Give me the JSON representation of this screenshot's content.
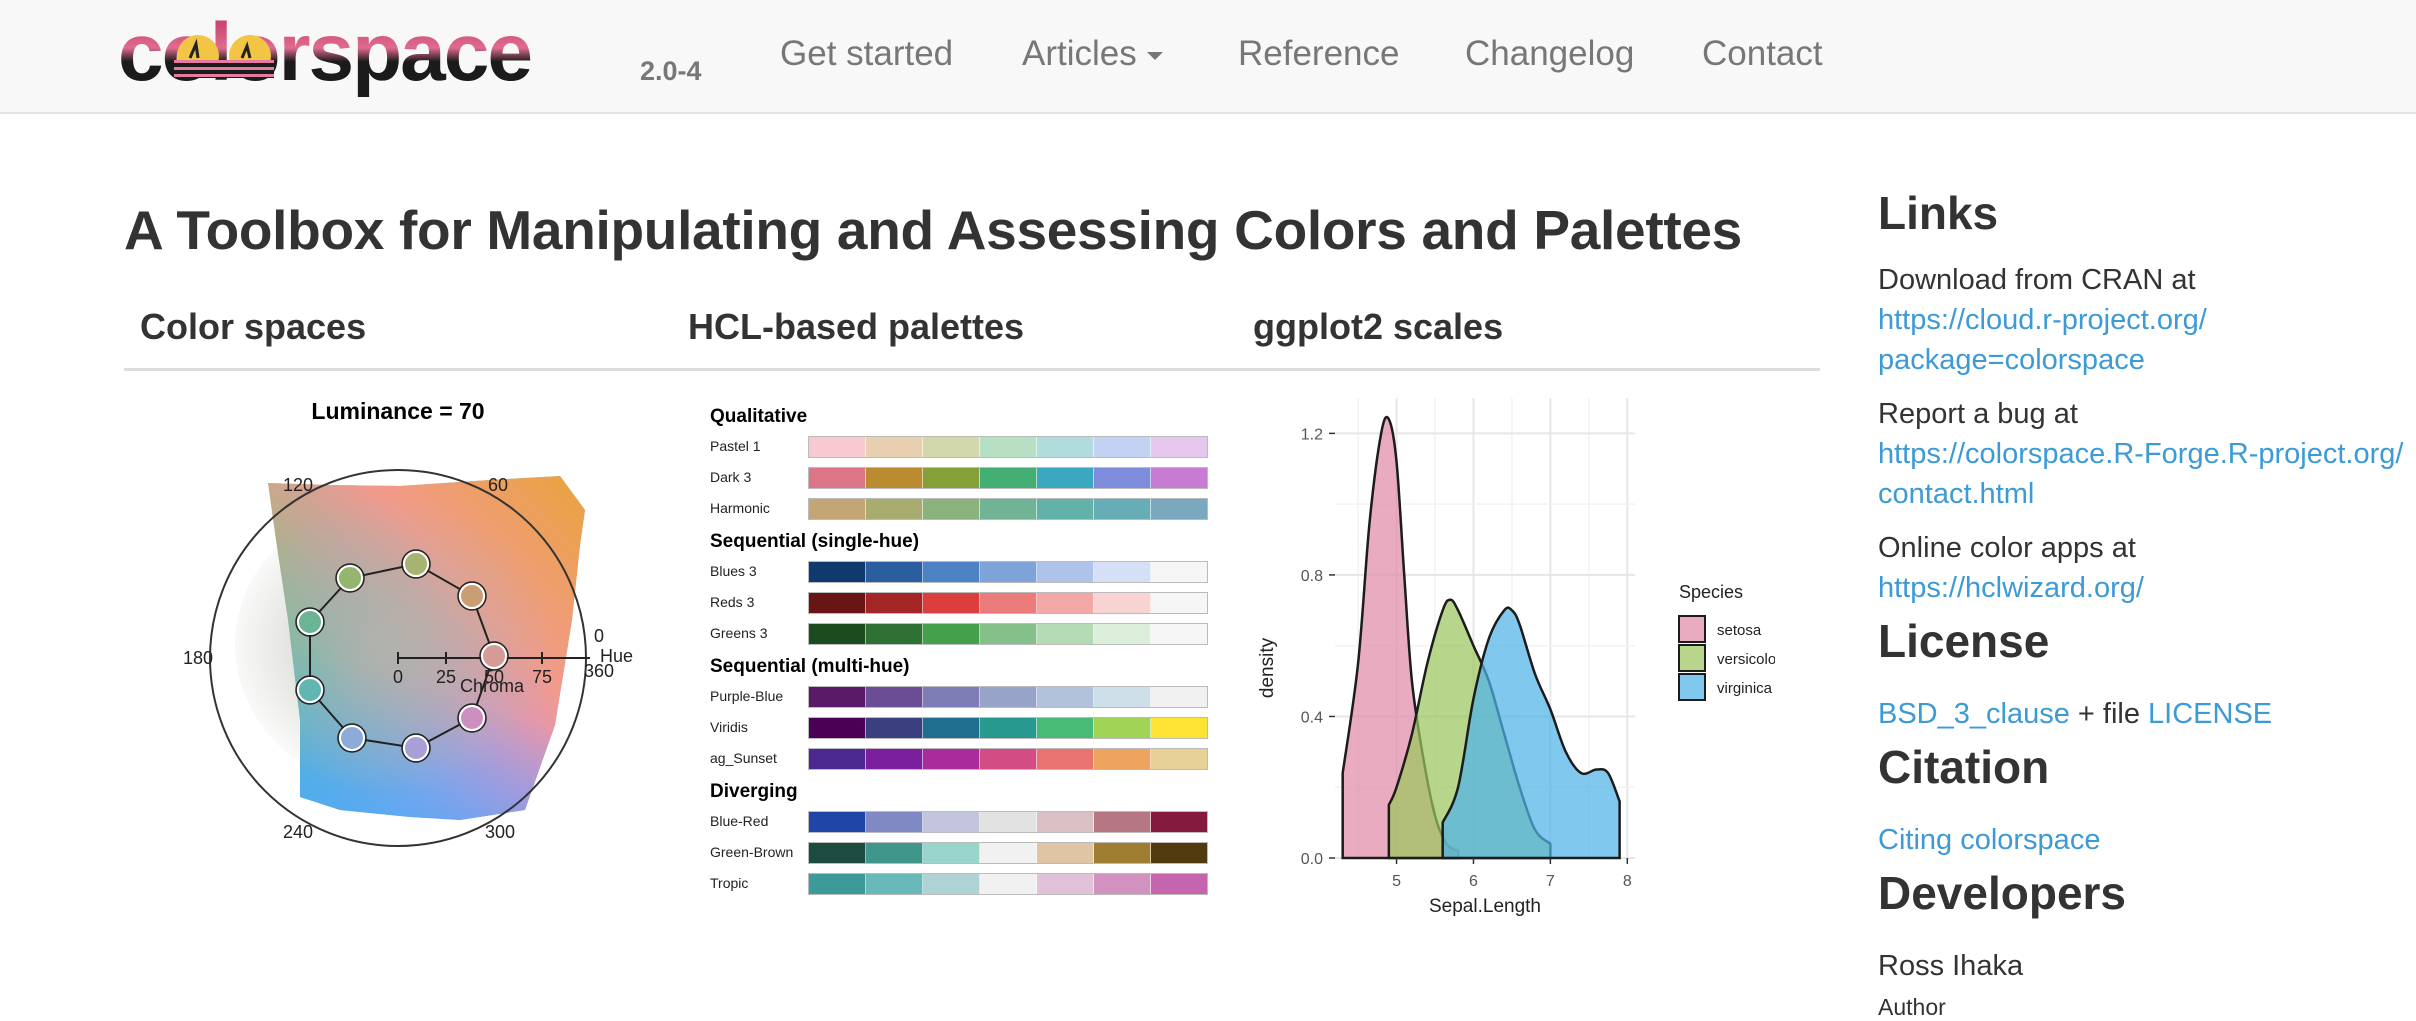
{
  "navbar": {
    "logo_text": "colorspace",
    "version": "2.0-4",
    "items": [
      {
        "label": "Get started"
      },
      {
        "label": "Articles",
        "has_caret": true
      },
      {
        "label": "Reference"
      },
      {
        "label": "Changelog"
      },
      {
        "label": "Contact"
      }
    ]
  },
  "main": {
    "title": "A Toolbox for Manipulating and Assessing Colors and Palettes",
    "tabs": [
      {
        "label": "Color spaces"
      },
      {
        "label": "HCL-based palettes"
      },
      {
        "label": "ggplot2 scales"
      }
    ]
  },
  "color_space_plot": {
    "title": "Luminance = 70",
    "hue_ticks": [
      "0",
      "60",
      "120",
      "180",
      "240",
      "300",
      "360"
    ],
    "hue_label": "Hue",
    "chroma_ticks": [
      "0",
      "25",
      "50",
      "75"
    ],
    "chroma_label": "Chroma"
  },
  "palettes": {
    "groups": [
      {
        "title": "Qualitative",
        "rows": [
          {
            "name": "Pastel 1",
            "colors": [
              "#f6c9d3",
              "#e8cfb0",
              "#d2d7ac",
              "#b6dfc3",
              "#b0dcde",
              "#c3d2f3",
              "#e6c8ee"
            ]
          },
          {
            "name": "Dark 3",
            "colors": [
              "#dc7587",
              "#bb8b2f",
              "#85a036",
              "#43ae74",
              "#3aa8c1",
              "#7d8ddc",
              "#c87bd2"
            ]
          },
          {
            "name": "Harmonic",
            "colors": [
              "#c4a676",
              "#a8ad6f",
              "#8bb27c",
              "#70b495",
              "#62b2a9",
              "#67adb5",
              "#7aa9bf"
            ]
          }
        ]
      },
      {
        "title": "Sequential (single-hue)",
        "rows": [
          {
            "name": "Blues 3",
            "colors": [
              "#0f3a6e",
              "#2a5e9e",
              "#4d82c4",
              "#7ea3d9",
              "#aec2ea",
              "#d5e0f6",
              "#f6f6f6"
            ]
          },
          {
            "name": "Reds 3",
            "colors": [
              "#6a1515",
              "#a32525",
              "#dc3d3d",
              "#ec7b7b",
              "#f3a8a8",
              "#f8d3d3",
              "#f6f6f6"
            ]
          },
          {
            "name": "Greens 3",
            "colors": [
              "#1b4b1e",
              "#2f7134",
              "#45a04c",
              "#85c08a",
              "#b5dbb5",
              "#dcefdb",
              "#f6f6f6"
            ]
          }
        ]
      },
      {
        "title": "Sequential (multi-hue)",
        "rows": [
          {
            "name": "Purple-Blue",
            "colors": [
              "#5a1a68",
              "#6a4d95",
              "#7f7db6",
              "#98a3ca",
              "#b1c2da",
              "#cfdfea",
              "#f1f1f1"
            ]
          },
          {
            "name": "Viridis",
            "colors": [
              "#4b0055",
              "#3a3f80",
              "#1f6d8f",
              "#27998e",
              "#48bc76",
              "#a1d356",
              "#fde333"
            ]
          },
          {
            "name": "ag_Sunset",
            "colors": [
              "#4b2991",
              "#7c1f9f",
              "#a92b9c",
              "#d34d85",
              "#e97370",
              "#eea35f",
              "#e8d197"
            ]
          }
        ]
      },
      {
        "title": "Diverging",
        "rows": [
          {
            "name": "Blue-Red",
            "colors": [
              "#1f45a8",
              "#8189c4",
              "#c2c5db",
              "#e2e2e2",
              "#d9c0c4",
              "#b77684",
              "#841a3d"
            ]
          },
          {
            "name": "Green-Brown",
            "colors": [
              "#1e4b40",
              "#3f978c",
              "#99d5cd",
              "#f1f1f1",
              "#dfc5a4",
              "#a07e31",
              "#523a0f"
            ]
          },
          {
            "name": "Tropic",
            "colors": [
              "#3c9b99",
              "#68b7b9",
              "#afd2d4",
              "#f1f1f1",
              "#e2c2d9",
              "#d192c0",
              "#c565ad"
            ]
          }
        ]
      }
    ]
  },
  "ggplot_chart": {
    "chart_data": {
      "type": "area",
      "xlabel": "Sepal.Length",
      "ylabel": "density",
      "xlim": [
        4.2,
        8.1
      ],
      "ylim": [
        0,
        1.3
      ],
      "x_ticks": [
        5,
        6,
        7,
        8
      ],
      "y_ticks": [
        0.0,
        0.4,
        0.8,
        1.2
      ],
      "y_tick_labels": [
        "0.0",
        "0.4",
        "0.8",
        "1.2"
      ],
      "grid": true,
      "legend": {
        "title": "Species",
        "placement": "right"
      },
      "series": [
        {
          "name": "setosa",
          "color": "#e08aa6",
          "x": [
            4.3,
            4.5,
            4.65,
            4.8,
            4.9,
            5.0,
            5.1,
            5.2,
            5.35,
            5.5,
            5.65,
            5.8
          ],
          "y": [
            0.24,
            0.55,
            0.95,
            1.2,
            1.24,
            1.12,
            0.8,
            0.5,
            0.28,
            0.12,
            0.04,
            0.02
          ]
        },
        {
          "name": "versicolor",
          "color": "#9bc65e",
          "x": [
            4.9,
            5.0,
            5.2,
            5.4,
            5.6,
            5.7,
            5.8,
            6.0,
            6.2,
            6.4,
            6.6,
            6.8,
            7.0
          ],
          "y": [
            0.15,
            0.2,
            0.35,
            0.55,
            0.7,
            0.73,
            0.7,
            0.6,
            0.5,
            0.35,
            0.2,
            0.08,
            0.04
          ]
        },
        {
          "name": "virginica",
          "color": "#4fb3e6",
          "x": [
            5.6,
            5.8,
            6.0,
            6.2,
            6.4,
            6.5,
            6.6,
            6.8,
            7.0,
            7.2,
            7.4,
            7.6,
            7.75,
            7.9
          ],
          "y": [
            0.1,
            0.2,
            0.45,
            0.62,
            0.7,
            0.7,
            0.66,
            0.52,
            0.42,
            0.3,
            0.24,
            0.25,
            0.24,
            0.16
          ]
        }
      ]
    }
  },
  "sidebar": {
    "links_heading": "Links",
    "cran_text": "Download from CRAN at",
    "cran_link_line1": "https://cloud.r-project.org/",
    "cran_link_line2": "package=colorspace",
    "bug_text": "Report a bug at",
    "bug_link_line1": "https://colorspace.R-Forge.R-project.org/",
    "bug_link_line2": "contact.html",
    "apps_text": "Online color apps at",
    "apps_link": "https://hclwizard.org/",
    "license_heading": "License",
    "license_link": "BSD_3_clause",
    "license_mid": " + file ",
    "license_file_link": "LICENSE",
    "citation_heading": "Citation",
    "citation_link": "Citing colorspace",
    "developers_heading": "Developers",
    "developer_name": "Ross Ihaka",
    "developer_role": "Author"
  },
  "colors": {
    "link": "#3c9ad6",
    "logo_pink": "#d64d78",
    "logo_dark": "#1b1b1b"
  }
}
